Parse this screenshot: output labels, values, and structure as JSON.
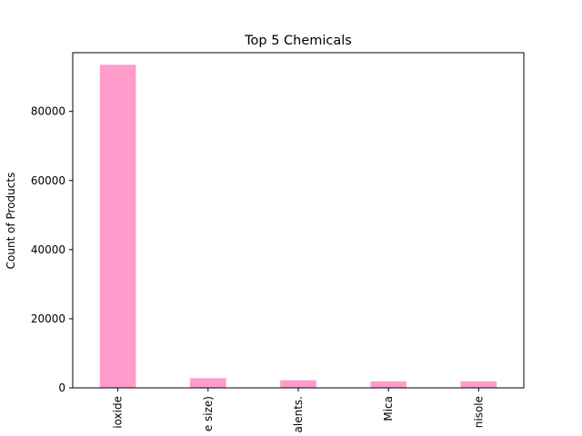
{
  "chart_data": {
    "type": "bar",
    "title": "Top 5 Chemicals",
    "xlabel": "",
    "ylabel": "Count of Products",
    "categories": [
      "ioxide",
      "e size)",
      "alents.",
      "Mica",
      "nisole"
    ],
    "values": [
      93500,
      2800,
      2200,
      1900,
      1900
    ],
    "ylim": [
      0,
      97000
    ],
    "yticks": [
      0,
      20000,
      40000,
      60000,
      80000
    ],
    "ytick_labels": [
      "0",
      "20000",
      "40000",
      "60000",
      "80000"
    ],
    "bar_color": "#ff9ccc",
    "grid": false
  }
}
